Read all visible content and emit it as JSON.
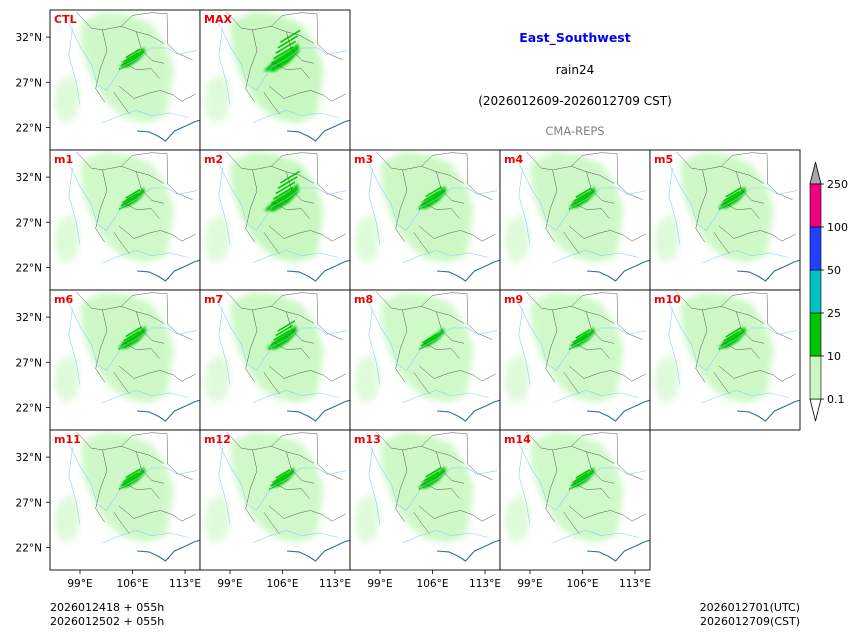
{
  "chart_data": {
    "type": "heatmap",
    "title": "East_Southwest",
    "variable": "rain24",
    "period": "(2026012609-2026012709 CST)",
    "model": "CMA-REPS",
    "colors": {
      "title": "#0000ee",
      "panel_label": "#ee0000",
      "model": "#808080",
      "light_rain": "#c8f8c0",
      "moderate_rain": "#00c800",
      "heavy_rain": "#00c0c0",
      "rainstorm": "#2040ff",
      "heavy_rainstorm": "#f00080",
      "extreme": "#a8a8a8",
      "river": "#8ccfff",
      "border": "#444444"
    },
    "colorbar": {
      "levels": [
        0.1,
        10,
        25,
        50,
        100,
        250
      ],
      "labels": [
        "0.1",
        "10",
        "25",
        "50",
        "100",
        "250"
      ]
    },
    "axes": {
      "lon_ticks": [
        "99°E",
        "106°E",
        "113°E"
      ],
      "lat_ticks": [
        "32°N",
        "27°N",
        "22°N"
      ],
      "lon_range": [
        95,
        115
      ],
      "lat_range": [
        19.5,
        35
      ]
    },
    "panels": [
      {
        "label": "CTL",
        "intensity": 0.45
      },
      {
        "label": "MAX",
        "intensity": 1.0
      },
      {
        "label": "m1",
        "intensity": 0.4
      },
      {
        "label": "m2",
        "intensity": 0.95
      },
      {
        "label": "m3",
        "intensity": 0.6
      },
      {
        "label": "m4",
        "intensity": 0.5
      },
      {
        "label": "m5",
        "intensity": 0.55
      },
      {
        "label": "m6",
        "intensity": 0.6
      },
      {
        "label": "m7",
        "intensity": 0.7
      },
      {
        "label": "m8",
        "intensity": 0.35
      },
      {
        "label": "m9",
        "intensity": 0.4
      },
      {
        "label": "m10",
        "intensity": 0.55
      },
      {
        "label": "m11",
        "intensity": 0.45
      },
      {
        "label": "m12",
        "intensity": 0.4
      },
      {
        "label": "m13",
        "intensity": 0.55
      },
      {
        "label": "m14",
        "intensity": 0.4
      }
    ],
    "footer": {
      "init_utc": "2026012418  +  055h",
      "init_cst": "2026012502  +  055h",
      "valid_utc": "2026012701(UTC)",
      "valid_cst": "2026012709(CST)"
    }
  }
}
